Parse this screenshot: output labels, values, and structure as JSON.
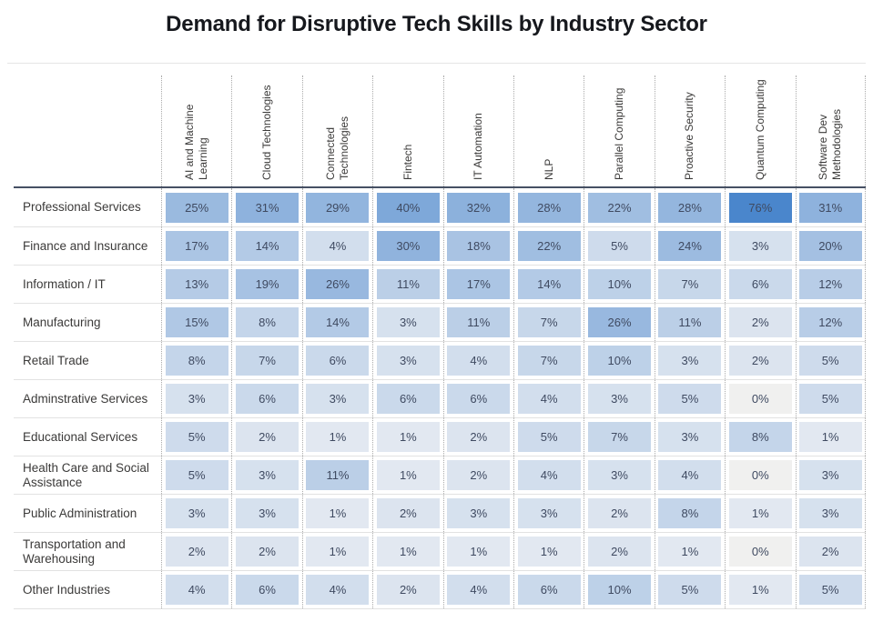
{
  "chart_data": {
    "type": "heatmap",
    "title": "Demand for Disruptive Tech Skills by Industry Sector",
    "unit": "%",
    "legend": false,
    "grid": "dotted-columns",
    "columns": [
      "AI and Machine Learning",
      "Cloud Technologies",
      "Connected Technologies",
      "Fintech",
      "IT Automation",
      "NLP",
      "Parallel Computing",
      "Proactive Security",
      "Quantum Computing",
      "Software Dev Methodologies"
    ],
    "rows": [
      "Professional Services",
      "Finance and Insurance",
      "Information / IT",
      "Manufacturing",
      "Retail Trade",
      "Adminstrative Services",
      "Educational Services",
      "Health Care and Social Assistance",
      "Public Administration",
      "Transportation and Warehousing",
      "Other Industries"
    ],
    "values": [
      [
        25,
        31,
        29,
        40,
        32,
        28,
        22,
        28,
        76,
        31
      ],
      [
        17,
        14,
        4,
        30,
        18,
        22,
        5,
        24,
        3,
        20
      ],
      [
        13,
        19,
        26,
        11,
        17,
        14,
        10,
        7,
        6,
        12
      ],
      [
        15,
        8,
        14,
        3,
        11,
        7,
        26,
        11,
        2,
        12
      ],
      [
        8,
        7,
        6,
        3,
        4,
        7,
        10,
        3,
        2,
        5
      ],
      [
        3,
        6,
        3,
        6,
        6,
        4,
        3,
        5,
        0,
        5
      ],
      [
        5,
        2,
        1,
        1,
        2,
        5,
        7,
        3,
        8,
        1
      ],
      [
        5,
        3,
        11,
        1,
        2,
        4,
        3,
        4,
        0,
        3
      ],
      [
        3,
        3,
        1,
        2,
        3,
        3,
        2,
        8,
        1,
        3
      ],
      [
        2,
        2,
        1,
        1,
        1,
        1,
        2,
        1,
        0,
        2
      ],
      [
        4,
        6,
        4,
        2,
        4,
        6,
        10,
        5,
        1,
        5
      ]
    ],
    "color_scale": {
      "min_color": "#EEF0F4",
      "max_color": "#4A86CC",
      "zero_color": "#F0F0EF",
      "domain": [
        0,
        76
      ],
      "curve_power": 0.6
    }
  },
  "styles": {
    "title_color": "#16181d",
    "header_text_color": "#3b3a39",
    "row_label_color": "#3b3a39",
    "cell_text_color": "#3f4a61",
    "header_rule_color": "#465064",
    "row_rule_color": "#e2e2e2",
    "dotted_line_color": "#ababab"
  }
}
